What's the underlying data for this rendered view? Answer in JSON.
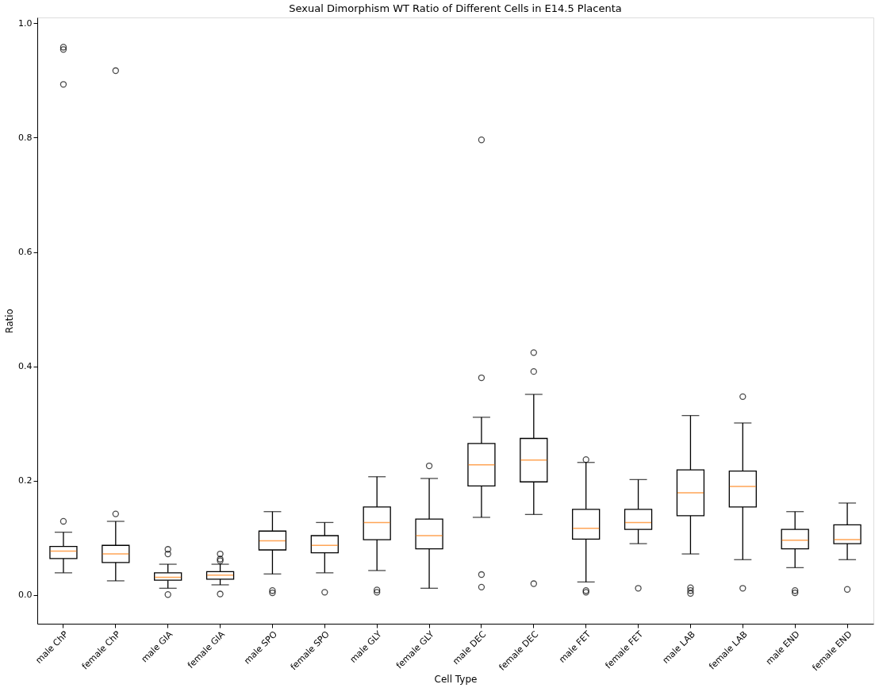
{
  "chart_data": {
    "type": "box",
    "title": "Sexual Dimorphism WT Ratio of Different Cells in E14.5 Placenta",
    "xlabel": "Cell Type",
    "ylabel": "Ratio",
    "categories": [
      "male ChP",
      "female ChP",
      "male GIA",
      "female GIA",
      "male SPO",
      "female SPO",
      "male GLY",
      "female GLY",
      "male DEC",
      "female DEC",
      "male FET",
      "female FET",
      "male LAB",
      "female LAB",
      "male END",
      "female END"
    ],
    "boxes": [
      {
        "low": 0.039,
        "q1": 0.064,
        "median": 0.077,
        "q3": 0.085,
        "high": 0.11,
        "outliers": [
          0.129,
          0.893,
          0.954,
          0.958
        ]
      },
      {
        "low": 0.025,
        "q1": 0.057,
        "median": 0.072,
        "q3": 0.087,
        "high": 0.129,
        "outliers": [
          0.142,
          0.917
        ]
      },
      {
        "low": 0.012,
        "q1": 0.026,
        "median": 0.031,
        "q3": 0.039,
        "high": 0.054,
        "outliers": [
          0.08,
          0.072,
          0.001
        ]
      },
      {
        "low": 0.018,
        "q1": 0.028,
        "median": 0.035,
        "q3": 0.041,
        "high": 0.054,
        "outliers": [
          0.072,
          0.063,
          0.06,
          0.002
        ]
      },
      {
        "low": 0.037,
        "q1": 0.079,
        "median": 0.095,
        "q3": 0.112,
        "high": 0.146,
        "outliers": [
          0.008,
          0.004
        ]
      },
      {
        "low": 0.039,
        "q1": 0.074,
        "median": 0.087,
        "q3": 0.104,
        "high": 0.127,
        "outliers": [
          0.005
        ]
      },
      {
        "low": 0.043,
        "q1": 0.097,
        "median": 0.127,
        "q3": 0.154,
        "high": 0.207,
        "outliers": [
          0.009,
          0.005
        ]
      },
      {
        "low": 0.012,
        "q1": 0.081,
        "median": 0.104,
        "q3": 0.133,
        "high": 0.204,
        "outliers": [
          0.226
        ]
      },
      {
        "low": 0.136,
        "q1": 0.191,
        "median": 0.228,
        "q3": 0.265,
        "high": 0.311,
        "outliers": [
          0.38,
          0.796,
          0.036,
          0.014
        ]
      },
      {
        "low": 0.141,
        "q1": 0.198,
        "median": 0.236,
        "q3": 0.274,
        "high": 0.351,
        "outliers": [
          0.424,
          0.391,
          0.02
        ]
      },
      {
        "low": 0.023,
        "q1": 0.098,
        "median": 0.117,
        "q3": 0.15,
        "high": 0.232,
        "outliers": [
          0.237,
          0.008,
          0.005
        ]
      },
      {
        "low": 0.09,
        "q1": 0.115,
        "median": 0.127,
        "q3": 0.15,
        "high": 0.202,
        "outliers": [
          0.012
        ]
      },
      {
        "low": 0.072,
        "q1": 0.139,
        "median": 0.179,
        "q3": 0.219,
        "high": 0.314,
        "outliers": [
          0.013,
          0.008,
          0.003
        ]
      },
      {
        "low": 0.062,
        "q1": 0.154,
        "median": 0.19,
        "q3": 0.217,
        "high": 0.301,
        "outliers": [
          0.347,
          0.012
        ]
      },
      {
        "low": 0.048,
        "q1": 0.081,
        "median": 0.096,
        "q3": 0.115,
        "high": 0.146,
        "outliers": [
          0.008,
          0.004
        ]
      },
      {
        "low": 0.062,
        "q1": 0.09,
        "median": 0.097,
        "q3": 0.123,
        "high": 0.161,
        "outliers": [
          0.01
        ]
      }
    ],
    "ylim": [
      -0.05,
      1.01
    ],
    "yticks": [
      {
        "value": 0,
        "label": "0.0"
      },
      {
        "value": 0.2,
        "label": "0.2"
      },
      {
        "value": 0.4,
        "label": "0.4"
      },
      {
        "value": 0.6,
        "label": "0.6"
      },
      {
        "value": 0.8,
        "label": "0.8"
      },
      {
        "value": 1.0,
        "label": "1.0"
      }
    ],
    "grid": false
  }
}
